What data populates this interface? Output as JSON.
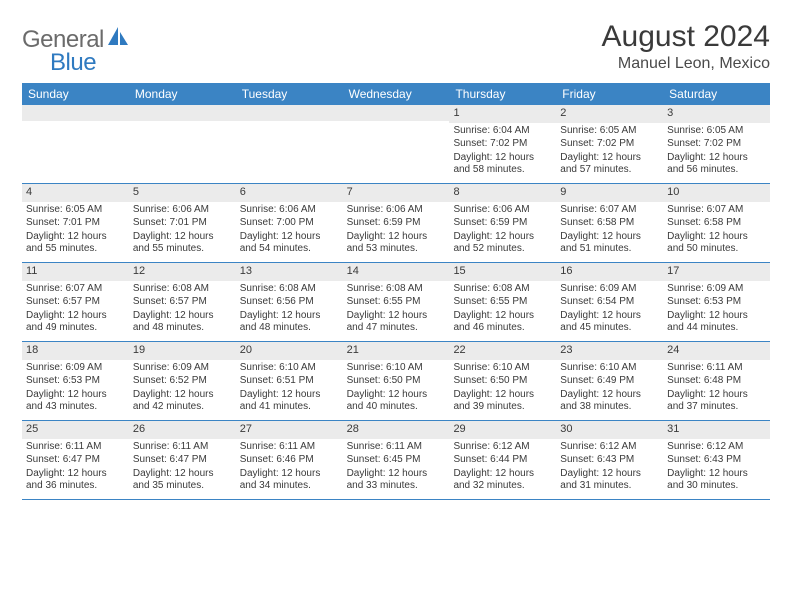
{
  "brand": {
    "part1": "General",
    "part2": "Blue"
  },
  "title": "August 2024",
  "location": "Manuel Leon, Mexico",
  "colors": {
    "header_bg": "#3b84c4",
    "header_text": "#ffffff",
    "daynum_bg": "#ebebeb",
    "text": "#3a3a3a",
    "logo_gray": "#6b6b6b",
    "logo_blue": "#2f7ac0",
    "border": "#3b84c4"
  },
  "weekdays": [
    "Sunday",
    "Monday",
    "Tuesday",
    "Wednesday",
    "Thursday",
    "Friday",
    "Saturday"
  ],
  "days": [
    {
      "n": "",
      "sr": "",
      "ss": "",
      "dl": ""
    },
    {
      "n": "",
      "sr": "",
      "ss": "",
      "dl": ""
    },
    {
      "n": "",
      "sr": "",
      "ss": "",
      "dl": ""
    },
    {
      "n": "",
      "sr": "",
      "ss": "",
      "dl": ""
    },
    {
      "n": "1",
      "sr": "Sunrise: 6:04 AM",
      "ss": "Sunset: 7:02 PM",
      "dl": "Daylight: 12 hours and 58 minutes."
    },
    {
      "n": "2",
      "sr": "Sunrise: 6:05 AM",
      "ss": "Sunset: 7:02 PM",
      "dl": "Daylight: 12 hours and 57 minutes."
    },
    {
      "n": "3",
      "sr": "Sunrise: 6:05 AM",
      "ss": "Sunset: 7:02 PM",
      "dl": "Daylight: 12 hours and 56 minutes."
    },
    {
      "n": "4",
      "sr": "Sunrise: 6:05 AM",
      "ss": "Sunset: 7:01 PM",
      "dl": "Daylight: 12 hours and 55 minutes."
    },
    {
      "n": "5",
      "sr": "Sunrise: 6:06 AM",
      "ss": "Sunset: 7:01 PM",
      "dl": "Daylight: 12 hours and 55 minutes."
    },
    {
      "n": "6",
      "sr": "Sunrise: 6:06 AM",
      "ss": "Sunset: 7:00 PM",
      "dl": "Daylight: 12 hours and 54 minutes."
    },
    {
      "n": "7",
      "sr": "Sunrise: 6:06 AM",
      "ss": "Sunset: 6:59 PM",
      "dl": "Daylight: 12 hours and 53 minutes."
    },
    {
      "n": "8",
      "sr": "Sunrise: 6:06 AM",
      "ss": "Sunset: 6:59 PM",
      "dl": "Daylight: 12 hours and 52 minutes."
    },
    {
      "n": "9",
      "sr": "Sunrise: 6:07 AM",
      "ss": "Sunset: 6:58 PM",
      "dl": "Daylight: 12 hours and 51 minutes."
    },
    {
      "n": "10",
      "sr": "Sunrise: 6:07 AM",
      "ss": "Sunset: 6:58 PM",
      "dl": "Daylight: 12 hours and 50 minutes."
    },
    {
      "n": "11",
      "sr": "Sunrise: 6:07 AM",
      "ss": "Sunset: 6:57 PM",
      "dl": "Daylight: 12 hours and 49 minutes."
    },
    {
      "n": "12",
      "sr": "Sunrise: 6:08 AM",
      "ss": "Sunset: 6:57 PM",
      "dl": "Daylight: 12 hours and 48 minutes."
    },
    {
      "n": "13",
      "sr": "Sunrise: 6:08 AM",
      "ss": "Sunset: 6:56 PM",
      "dl": "Daylight: 12 hours and 48 minutes."
    },
    {
      "n": "14",
      "sr": "Sunrise: 6:08 AM",
      "ss": "Sunset: 6:55 PM",
      "dl": "Daylight: 12 hours and 47 minutes."
    },
    {
      "n": "15",
      "sr": "Sunrise: 6:08 AM",
      "ss": "Sunset: 6:55 PM",
      "dl": "Daylight: 12 hours and 46 minutes."
    },
    {
      "n": "16",
      "sr": "Sunrise: 6:09 AM",
      "ss": "Sunset: 6:54 PM",
      "dl": "Daylight: 12 hours and 45 minutes."
    },
    {
      "n": "17",
      "sr": "Sunrise: 6:09 AM",
      "ss": "Sunset: 6:53 PM",
      "dl": "Daylight: 12 hours and 44 minutes."
    },
    {
      "n": "18",
      "sr": "Sunrise: 6:09 AM",
      "ss": "Sunset: 6:53 PM",
      "dl": "Daylight: 12 hours and 43 minutes."
    },
    {
      "n": "19",
      "sr": "Sunrise: 6:09 AM",
      "ss": "Sunset: 6:52 PM",
      "dl": "Daylight: 12 hours and 42 minutes."
    },
    {
      "n": "20",
      "sr": "Sunrise: 6:10 AM",
      "ss": "Sunset: 6:51 PM",
      "dl": "Daylight: 12 hours and 41 minutes."
    },
    {
      "n": "21",
      "sr": "Sunrise: 6:10 AM",
      "ss": "Sunset: 6:50 PM",
      "dl": "Daylight: 12 hours and 40 minutes."
    },
    {
      "n": "22",
      "sr": "Sunrise: 6:10 AM",
      "ss": "Sunset: 6:50 PM",
      "dl": "Daylight: 12 hours and 39 minutes."
    },
    {
      "n": "23",
      "sr": "Sunrise: 6:10 AM",
      "ss": "Sunset: 6:49 PM",
      "dl": "Daylight: 12 hours and 38 minutes."
    },
    {
      "n": "24",
      "sr": "Sunrise: 6:11 AM",
      "ss": "Sunset: 6:48 PM",
      "dl": "Daylight: 12 hours and 37 minutes."
    },
    {
      "n": "25",
      "sr": "Sunrise: 6:11 AM",
      "ss": "Sunset: 6:47 PM",
      "dl": "Daylight: 12 hours and 36 minutes."
    },
    {
      "n": "26",
      "sr": "Sunrise: 6:11 AM",
      "ss": "Sunset: 6:47 PM",
      "dl": "Daylight: 12 hours and 35 minutes."
    },
    {
      "n": "27",
      "sr": "Sunrise: 6:11 AM",
      "ss": "Sunset: 6:46 PM",
      "dl": "Daylight: 12 hours and 34 minutes."
    },
    {
      "n": "28",
      "sr": "Sunrise: 6:11 AM",
      "ss": "Sunset: 6:45 PM",
      "dl": "Daylight: 12 hours and 33 minutes."
    },
    {
      "n": "29",
      "sr": "Sunrise: 6:12 AM",
      "ss": "Sunset: 6:44 PM",
      "dl": "Daylight: 12 hours and 32 minutes."
    },
    {
      "n": "30",
      "sr": "Sunrise: 6:12 AM",
      "ss": "Sunset: 6:43 PM",
      "dl": "Daylight: 12 hours and 31 minutes."
    },
    {
      "n": "31",
      "sr": "Sunrise: 6:12 AM",
      "ss": "Sunset: 6:43 PM",
      "dl": "Daylight: 12 hours and 30 minutes."
    }
  ]
}
